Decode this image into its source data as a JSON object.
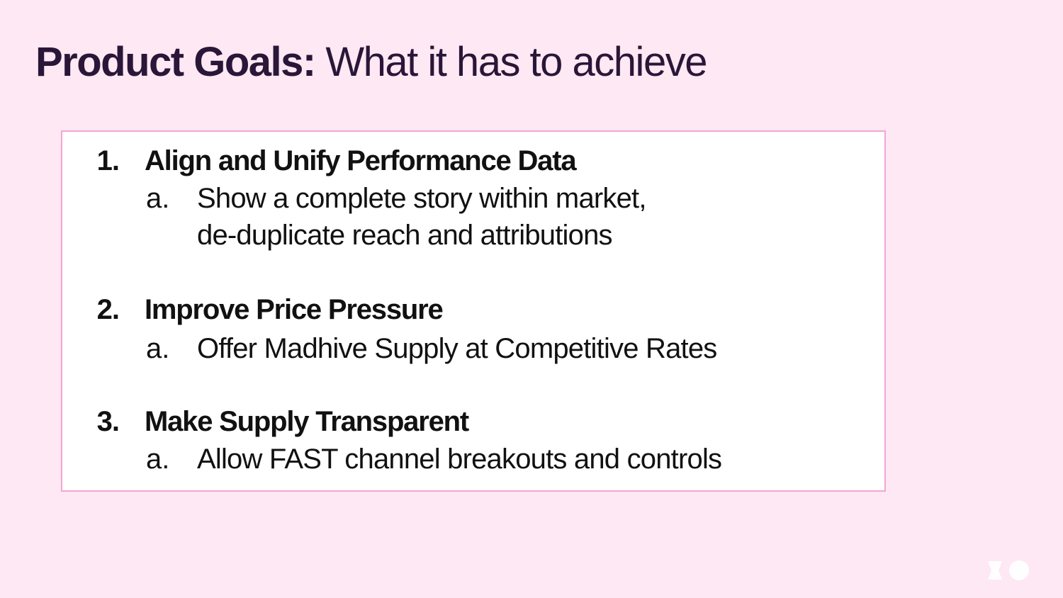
{
  "title": {
    "bold": "Product Goals:",
    "regular": " What it has to achieve"
  },
  "goals": [
    {
      "number": "1.",
      "title": "Align and Unify Performance Data",
      "sub": {
        "letter": "a.",
        "lines": [
          "Show a complete story within market,",
          "de-duplicate reach and attributions"
        ]
      }
    },
    {
      "number": "2.",
      "title": "Improve Price Pressure",
      "sub": {
        "letter": "a.",
        "lines": [
          "Offer Madhive Supply at Competitive Rates"
        ]
      }
    },
    {
      "number": "3.",
      "title": "Make Supply Transparent",
      "sub": {
        "letter": "a.",
        "lines": [
          "Allow FAST channel breakouts and controls"
        ]
      }
    }
  ],
  "colors": {
    "background": "#fde8f3",
    "title": "#2a1638",
    "box_border": "#f2a6d6",
    "logo": "#ffffff"
  },
  "logo_icon": "brand-logo-icon"
}
